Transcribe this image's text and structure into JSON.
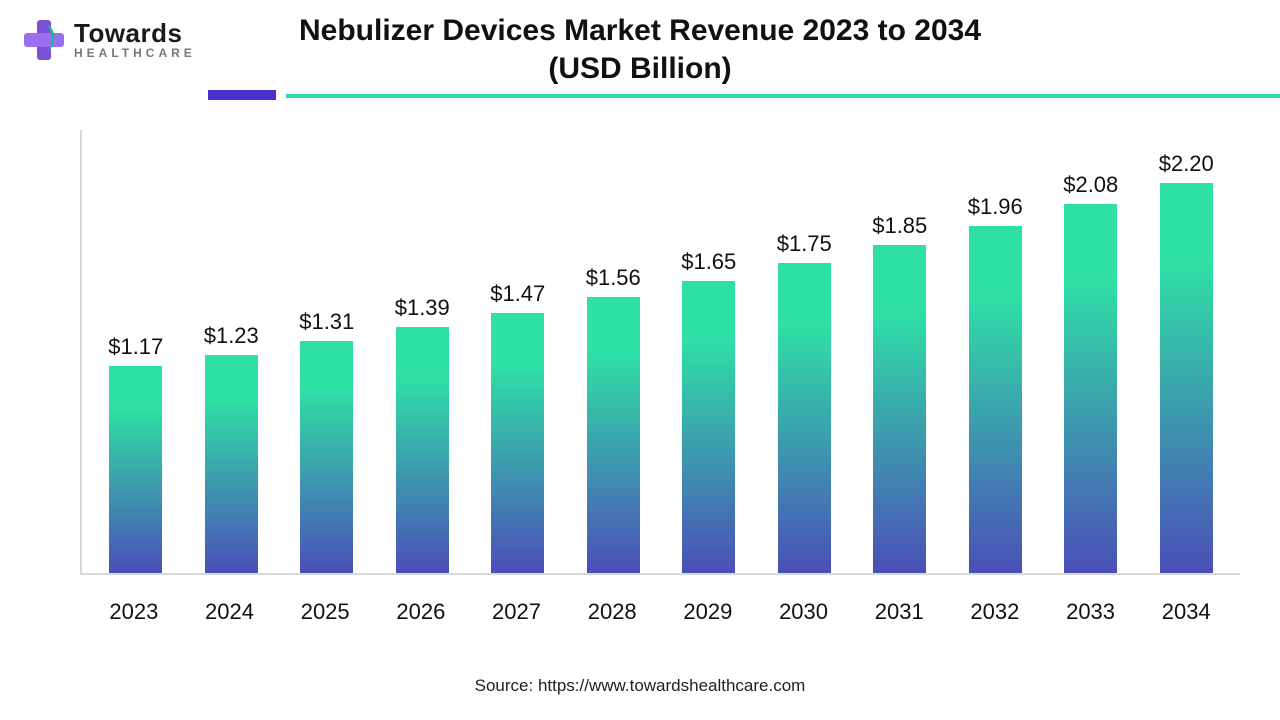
{
  "logo": {
    "brand": "Towards",
    "sub": "HEALTHCARE",
    "colors": {
      "purple": "#7b4fd6",
      "teal": "#1fb88f"
    }
  },
  "title": {
    "line1": "Nebulizer Devices Market Revenue 2023 to 2034",
    "line2": "(USD Billion)",
    "fontsize": 30,
    "color": "#111111"
  },
  "divider": {
    "purple": "#4b2fcf",
    "teal": "#30d9a7"
  },
  "chart": {
    "type": "bar",
    "categories": [
      "2023",
      "2024",
      "2025",
      "2026",
      "2027",
      "2028",
      "2029",
      "2030",
      "2031",
      "2032",
      "2033",
      "2034"
    ],
    "values": [
      1.17,
      1.23,
      1.31,
      1.39,
      1.47,
      1.56,
      1.65,
      1.75,
      1.85,
      1.96,
      2.08,
      2.2
    ],
    "value_labels": [
      "$1.17",
      "$1.23",
      "$1.31",
      "$1.39",
      "$1.47",
      "$1.56",
      "$1.65",
      "$1.75",
      "$1.85",
      "$1.96",
      "$2.08",
      "$2.20"
    ],
    "ylim": [
      0,
      2.5
    ],
    "bar_gradient_top": "#2fe0a5",
    "bar_gradient_bottom": "#4b4fb8",
    "axis_color": "#d9d9d9",
    "label_fontsize": 22,
    "xlabel_fontsize": 22,
    "bar_width_pct": 56,
    "background_color": "#ffffff"
  },
  "source": "Source: https://www.towardshealthcare.com"
}
